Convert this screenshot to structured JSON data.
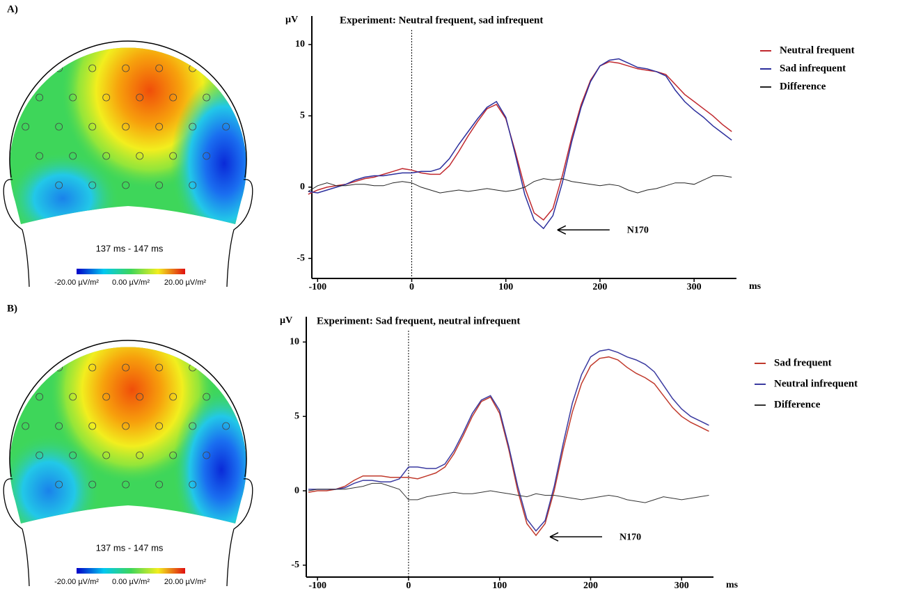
{
  "panels": [
    {
      "label": "A)",
      "time_window": "137 ms - 147 ms",
      "scale_labels": [
        "-20.00 µV/m²",
        "0.00 µV/m²",
        "20.00 µV/m²"
      ]
    },
    {
      "label": "B)",
      "time_window": "137 ms - 147 ms",
      "scale_labels": [
        "-20.00 µV/m²",
        "0.00 µV/m²",
        "20.00 µV/m²"
      ]
    }
  ],
  "chart_data": [
    {
      "type": "line",
      "title": "Experiment: Neutral frequent, sad infrequent",
      "y_label": "µV",
      "x_label": "ms",
      "annotation": "N170",
      "vline": 0,
      "legend": "right",
      "x": [
        -110,
        -100,
        -90,
        -80,
        -70,
        -60,
        -50,
        -40,
        -30,
        -20,
        -10,
        0,
        10,
        20,
        30,
        40,
        50,
        60,
        70,
        80,
        90,
        100,
        110,
        120,
        130,
        140,
        150,
        160,
        170,
        180,
        190,
        200,
        210,
        220,
        230,
        240,
        250,
        260,
        270,
        280,
        290,
        300,
        310,
        320,
        330,
        340
      ],
      "xlim": [
        -115,
        345
      ],
      "xticks": [
        -100,
        0,
        100,
        200,
        300
      ],
      "ylim": [
        -6.4,
        12
      ],
      "yticks": [
        -5,
        0,
        5,
        10
      ],
      "series": [
        {
          "name": "Neutral frequent",
          "color": "#c0282e",
          "values": [
            -0.5,
            -0.2,
            0,
            0.1,
            0.2,
            0.4,
            0.6,
            0.7,
            0.9,
            1.1,
            1.3,
            1.2,
            1.0,
            0.9,
            0.9,
            1.5,
            2.5,
            3.6,
            4.6,
            5.5,
            5.8,
            4.8,
            2.5,
            0,
            -1.8,
            -2.3,
            -1.5,
            0.8,
            3.5,
            5.8,
            7.5,
            8.5,
            8.8,
            8.7,
            8.5,
            8.3,
            8.2,
            8.1,
            7.9,
            7.2,
            6.5,
            6.0,
            5.5,
            5.0,
            4.4,
            3.9
          ]
        },
        {
          "name": "Sad infrequent",
          "color": "#2b2e9c",
          "values": [
            -0.3,
            -0.4,
            -0.2,
            0,
            0.2,
            0.5,
            0.7,
            0.8,
            0.8,
            0.9,
            1.0,
            1.0,
            1.1,
            1.1,
            1.3,
            2.0,
            3.0,
            3.9,
            4.8,
            5.6,
            6.0,
            4.9,
            2.3,
            -0.5,
            -2.3,
            -2.9,
            -2.0,
            0.3,
            3.2,
            5.6,
            7.4,
            8.5,
            8.9,
            9.0,
            8.7,
            8.4,
            8.3,
            8.1,
            7.8,
            6.8,
            6.0,
            5.4,
            4.9,
            4.3,
            3.8,
            3.3
          ]
        },
        {
          "name": "Difference",
          "color": "#222222",
          "values": [
            -0.3,
            0.1,
            0.3,
            0.1,
            0.1,
            0.2,
            0.2,
            0.1,
            0.1,
            0.3,
            0.4,
            0.3,
            0,
            -0.2,
            -0.4,
            -0.3,
            -0.2,
            -0.3,
            -0.2,
            -0.1,
            -0.2,
            -0.3,
            -0.2,
            0,
            0.4,
            0.6,
            0.5,
            0.6,
            0.4,
            0.3,
            0.2,
            0.1,
            0.2,
            0.1,
            -0.2,
            -0.4,
            -0.2,
            -0.1,
            0.1,
            0.3,
            0.3,
            0.2,
            0.5,
            0.8,
            0.8,
            0.7
          ]
        }
      ]
    },
    {
      "type": "line",
      "title": "Experiment: Sad frequent, neutral infrequent",
      "y_label": "µV",
      "x_label": "ms",
      "annotation": "N170",
      "vline": 0,
      "legend": "right",
      "x": [
        -110,
        -100,
        -90,
        -80,
        -70,
        -60,
        -50,
        -40,
        -30,
        -20,
        -10,
        0,
        10,
        20,
        30,
        40,
        50,
        60,
        70,
        80,
        90,
        100,
        110,
        120,
        130,
        140,
        150,
        160,
        170,
        180,
        190,
        200,
        210,
        220,
        230,
        240,
        250,
        260,
        270,
        280,
        290,
        300,
        310,
        320,
        330,
        340
      ],
      "xlim": [
        -120,
        335
      ],
      "xticks": [
        -100,
        0,
        100,
        200,
        300
      ],
      "ylim": [
        -5.8,
        11.7
      ],
      "yticks": [
        -5,
        0,
        5,
        10
      ],
      "series": [
        {
          "name": "Sad frequent",
          "color": "#c0392b",
          "values": [
            -0.1,
            0,
            0,
            0.1,
            0.3,
            0.7,
            1.0,
            1.0,
            1.0,
            0.9,
            0.9,
            0.9,
            0.8,
            1.0,
            1.2,
            1.6,
            2.5,
            3.7,
            5.0,
            6.0,
            6.3,
            5.2,
            2.8,
            0,
            -2.2,
            -3.0,
            -2.2,
            0,
            2.8,
            5.3,
            7.2,
            8.4,
            8.9,
            9.0,
            8.8,
            8.3,
            7.9,
            7.6,
            7.2,
            6.4,
            5.6,
            5.0,
            4.6,
            4.3,
            4.0,
            null
          ]
        },
        {
          "name": "Neutral infrequent",
          "color": "#3a3aa0",
          "values": [
            0.1,
            0.1,
            0.1,
            0.1,
            0.2,
            0.5,
            0.7,
            0.7,
            0.6,
            0.6,
            0.8,
            1.6,
            1.6,
            1.5,
            1.5,
            1.8,
            2.7,
            3.9,
            5.2,
            6.1,
            6.4,
            5.4,
            3.0,
            0.3,
            -1.9,
            -2.7,
            -2.0,
            0.3,
            3.2,
            5.9,
            7.8,
            9.0,
            9.4,
            9.5,
            9.3,
            9.0,
            8.8,
            8.5,
            8.0,
            7.1,
            6.2,
            5.5,
            5.0,
            4.7,
            4.4,
            null
          ]
        },
        {
          "name": "Difference",
          "color": "#333333",
          "values": [
            0,
            0.1,
            0.1,
            0.1,
            0.1,
            0.2,
            0.3,
            0.5,
            0.5,
            0.3,
            0.1,
            -0.6,
            -0.6,
            -0.4,
            -0.3,
            -0.2,
            -0.1,
            -0.2,
            -0.2,
            -0.1,
            0,
            -0.1,
            -0.2,
            -0.3,
            -0.4,
            -0.2,
            -0.3,
            -0.3,
            -0.4,
            -0.5,
            -0.6,
            -0.5,
            -0.4,
            -0.3,
            -0.4,
            -0.6,
            -0.7,
            -0.8,
            -0.6,
            -0.4,
            -0.5,
            -0.6,
            -0.5,
            -0.4,
            -0.3,
            null
          ]
        }
      ]
    }
  ]
}
